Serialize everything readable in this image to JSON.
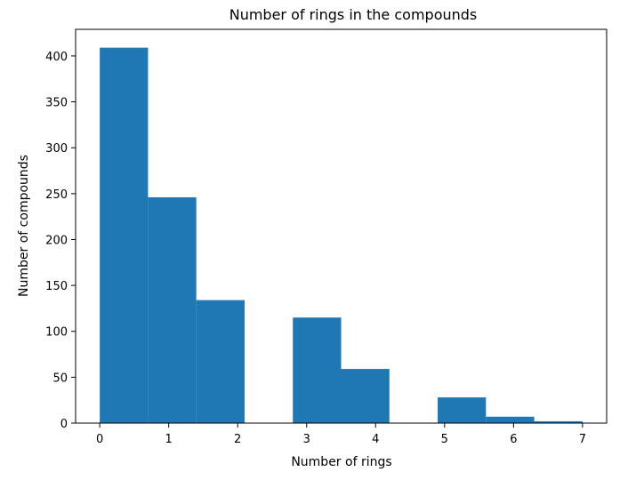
{
  "chart_data": {
    "type": "bar",
    "title": "Number of rings in the compounds",
    "xlabel": "Number of rings",
    "ylabel": "Number of compounds",
    "bin_edges": [
      0,
      0.7,
      1.4,
      2.1,
      2.8,
      3.5,
      4.2,
      4.9,
      5.6,
      6.3,
      7.0
    ],
    "values": [
      409,
      246,
      134,
      0,
      115,
      59,
      0,
      28,
      7,
      2
    ],
    "xlim": [
      -0.35,
      7.35
    ],
    "ylim": [
      0,
      429
    ],
    "xticks": [
      0,
      1,
      2,
      3,
      4,
      5,
      6,
      7
    ],
    "yticks": [
      0,
      50,
      100,
      150,
      200,
      250,
      300,
      350,
      400
    ],
    "bar_color": "#1f77b4",
    "grid": false,
    "legend": "none"
  }
}
